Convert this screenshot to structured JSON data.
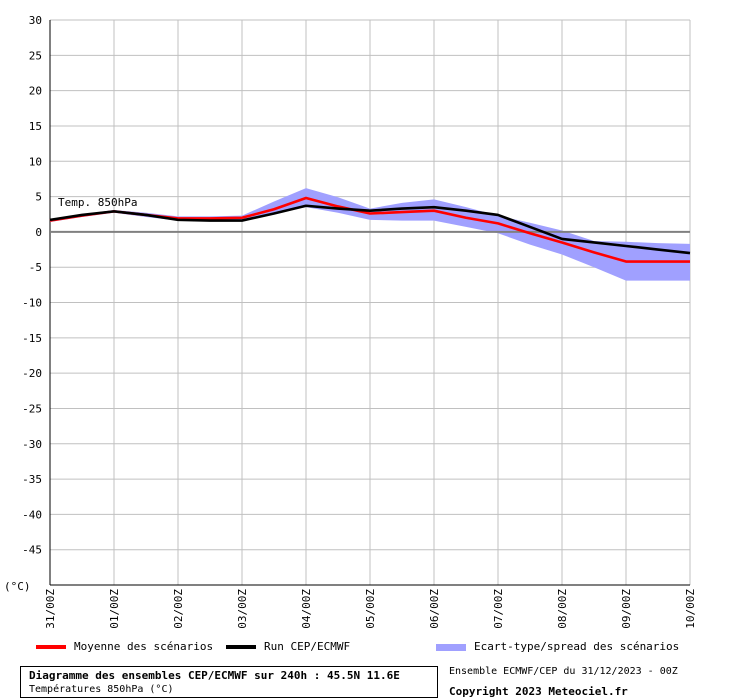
{
  "chart_data": {
    "type": "line",
    "series_label": "Temp. 850hPa",
    "unit_label": "(°C)",
    "ylim": [
      -50,
      30
    ],
    "yticks": [
      30,
      25,
      20,
      15,
      10,
      5,
      0,
      -5,
      -10,
      -15,
      -20,
      -25,
      -30,
      -35,
      -40,
      -45
    ],
    "categories": [
      "31/00Z",
      "01/00Z",
      "02/00Z",
      "03/00Z",
      "04/00Z",
      "05/00Z",
      "06/00Z",
      "07/00Z",
      "08/00Z",
      "09/00Z",
      "10/00Z"
    ],
    "x": [
      0,
      12,
      24,
      36,
      48,
      60,
      72,
      84,
      96,
      108,
      120,
      132,
      144,
      156,
      168,
      180,
      192,
      204,
      216,
      228,
      240
    ],
    "series": [
      {
        "name": "Moyenne des scénarios",
        "color": "#ff0000",
        "values": [
          1.6,
          2.3,
          2.9,
          2.4,
          1.9,
          1.9,
          2.0,
          3.2,
          4.8,
          3.6,
          2.6,
          2.8,
          3.0,
          2.0,
          1.2,
          -0.2,
          -1.5,
          -2.9,
          -4.2,
          -4.2,
          -4.2
        ]
      },
      {
        "name": "Run CEP/ECMWF",
        "color": "#000000",
        "values": [
          1.7,
          2.4,
          2.9,
          2.4,
          1.7,
          1.6,
          1.6,
          2.6,
          3.7,
          3.3,
          3.0,
          3.3,
          3.5,
          3.0,
          2.4,
          0.7,
          -1.0,
          -1.5,
          -2.0,
          -2.5,
          -3.0
        ]
      },
      {
        "name": "Ecart-type/spread des scénarios",
        "color": "#a0a0ff",
        "upper": [
          1.8,
          2.5,
          3.1,
          2.7,
          2.2,
          2.2,
          2.3,
          4.3,
          6.2,
          4.9,
          3.3,
          4.1,
          4.6,
          3.5,
          2.3,
          1.3,
          0.2,
          -1.3,
          -1.4,
          -1.6,
          -1.7
        ],
        "lower": [
          1.4,
          2.1,
          2.7,
          2.1,
          1.6,
          1.6,
          1.7,
          2.6,
          3.5,
          2.7,
          1.7,
          1.6,
          1.6,
          0.7,
          -0.2,
          -1.8,
          -3.2,
          -5.0,
          -6.9,
          -6.9,
          -6.9
        ]
      }
    ],
    "grid": true
  },
  "legend": {
    "mean": "Moyenne des scénarios",
    "run": "Run CEP/ECMWF",
    "spread": "Ecart-type/spread des scénarios"
  },
  "info": {
    "title": "Diagramme des ensembles CEP/ECMWF sur 240h : 45.5N 11.6E",
    "subtitle": "Températures 850hPa (°C)",
    "run": "Ensemble ECMWF/CEP du 31/12/2023 - 00Z",
    "copyright": "Copyright 2023 Meteociel.fr"
  },
  "colors": {
    "mean": "#ff0000",
    "run": "#000000",
    "spread": "#a0a0ff",
    "grid": "#c0c0c0"
  }
}
